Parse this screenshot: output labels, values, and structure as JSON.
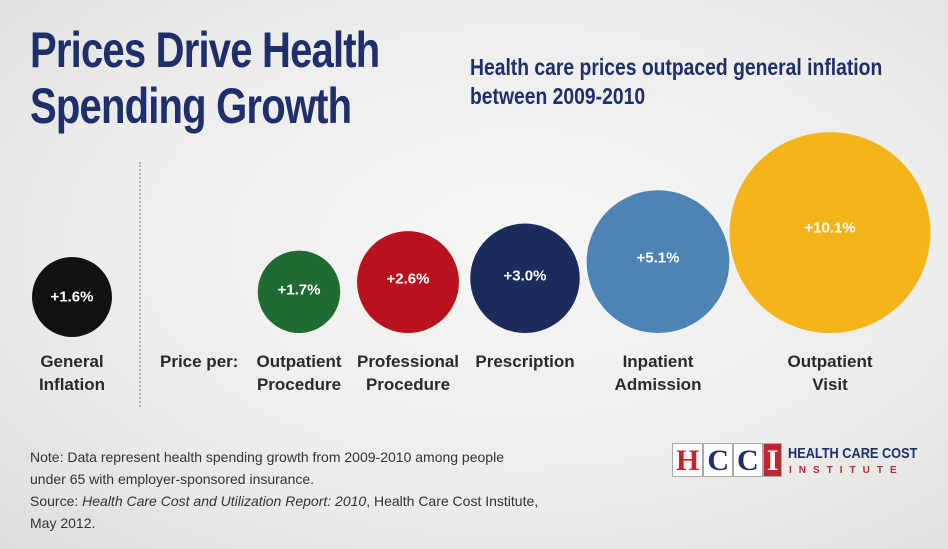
{
  "title_line1": "Prices Drive Health",
  "title_line2": "Spending Growth",
  "subtitle_line1": "Health care prices outpaced general inflation",
  "subtitle_line2": "between 2009-2010",
  "price_per_label": "Price per:",
  "colors": {
    "title": "#1f2f6b",
    "general_inflation": "#111111",
    "outpatient_procedure": "#1f6b33",
    "professional_procedure": "#b8121c",
    "prescription": "#1b2c5c",
    "inpatient_admission": "#4d84b4",
    "outpatient_visit": "#f4b41b"
  },
  "chart_data": {
    "type": "bubble",
    "title": "Prices Drive Health Spending Growth",
    "subtitle": "Health care prices outpaced general inflation between 2009-2010",
    "unit": "%",
    "categories": [
      "General Inflation",
      "Outpatient Procedure",
      "Professional Procedure",
      "Prescription",
      "Inpatient Admission",
      "Outpatient Visit"
    ],
    "values": [
      1.6,
      1.7,
      2.6,
      3.0,
      5.1,
      10.1
    ],
    "value_labels": [
      "+1.6%",
      "+1.7%",
      "+2.6%",
      "+3.0%",
      "+5.1%",
      "+10.1%"
    ],
    "label_lines": [
      [
        "General",
        "Inflation"
      ],
      [
        "Outpatient",
        "Procedure"
      ],
      [
        "Professional",
        "Procedure"
      ],
      [
        "Prescription"
      ],
      [
        "Inpatient",
        "Admission"
      ],
      [
        "Outpatient",
        "Visit"
      ]
    ],
    "color_keys": [
      "general_inflation",
      "outpatient_procedure",
      "professional_procedure",
      "prescription",
      "inpatient_admission",
      "outpatient_visit"
    ]
  },
  "note": {
    "line1": "Note: Data represent health spending growth from 2009-2010 among people",
    "line2": "under 65 with employer-sponsored insurance.",
    "source_prefix": "Source: ",
    "source_title": "Health Care Cost and Utilization Report: 2010",
    "source_suffix": ", Health Care Cost Institute,",
    "line4": "May 2012."
  },
  "logo": {
    "mark": [
      "H",
      "C",
      "C",
      "I"
    ],
    "name": "HEALTH CARE COST",
    "sub": "INSTITUTE"
  }
}
